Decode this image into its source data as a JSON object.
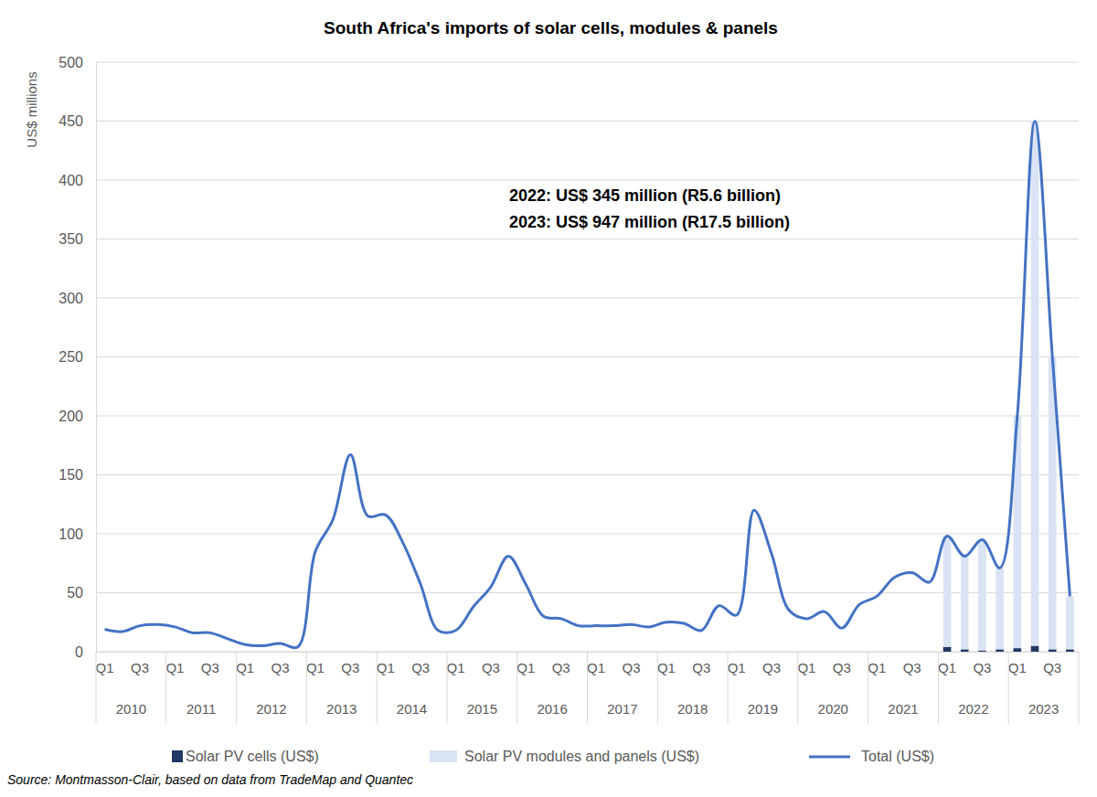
{
  "chart_data": {
    "type": "bar",
    "title": "South Africa's imports of solar cells, modules & panels",
    "y_label": "US$ millions",
    "annotations": [
      "2022: US$ 345 million (R5.6 billion)",
      "2023: US$ 947 million (R17.5 billion)"
    ],
    "source": "Source: Montmasson-Clair, based on data from TradeMap and Quantec",
    "groups": [
      "2010",
      "2011",
      "2012",
      "2013",
      "2014",
      "2015",
      "2016",
      "2017",
      "2018",
      "2019",
      "2020",
      "2021",
      "2022",
      "2023"
    ],
    "categories": [
      "Q1",
      null,
      "Q3",
      null,
      "Q1",
      null,
      "Q3",
      null,
      "Q1",
      null,
      "Q3",
      null,
      "Q1",
      null,
      "Q3",
      null,
      "Q1",
      null,
      "Q3",
      null,
      "Q1",
      null,
      "Q3",
      null,
      "Q1",
      null,
      "Q3",
      null,
      "Q1",
      null,
      "Q3",
      null,
      "Q1",
      null,
      "Q3",
      null,
      "Q1",
      null,
      "Q3",
      null,
      "Q1",
      null,
      "Q3",
      null,
      "Q1",
      null,
      "Q3",
      null,
      "Q1",
      null,
      "Q3",
      null,
      "Q1",
      null,
      "Q3",
      null
    ],
    "stacked": true,
    "grid": true,
    "legend": "bottom",
    "ylim": [
      0,
      500
    ],
    "yticks": [
      0,
      50,
      100,
      150,
      200,
      250,
      300,
      350,
      400,
      450,
      500
    ],
    "series": [
      {
        "name": "Solar PV cells (US$)",
        "type": "bar",
        "color": "#203864",
        "values": [
          null,
          null,
          null,
          null,
          null,
          null,
          null,
          null,
          null,
          null,
          null,
          null,
          null,
          null,
          null,
          null,
          null,
          null,
          null,
          null,
          null,
          null,
          null,
          null,
          null,
          null,
          null,
          null,
          null,
          null,
          null,
          null,
          null,
          null,
          null,
          null,
          null,
          null,
          null,
          null,
          null,
          null,
          null,
          null,
          null,
          null,
          null,
          null,
          4,
          2,
          1,
          2,
          3,
          5,
          2,
          2
        ]
      },
      {
        "name": "Solar PV modules and panels (US$)",
        "type": "bar",
        "color": "#dae3f3",
        "values": [
          null,
          null,
          null,
          null,
          null,
          null,
          null,
          null,
          null,
          null,
          null,
          null,
          null,
          null,
          null,
          null,
          null,
          null,
          null,
          null,
          null,
          null,
          null,
          null,
          null,
          null,
          null,
          null,
          null,
          null,
          null,
          null,
          null,
          null,
          null,
          null,
          null,
          null,
          null,
          null,
          null,
          null,
          null,
          null,
          null,
          null,
          null,
          null,
          94,
          79,
          94,
          69,
          197,
          445,
          248,
          45
        ]
      },
      {
        "name": "Total (US$)",
        "type": "line",
        "color": "#4472c4",
        "values": [
          19,
          17,
          22,
          23,
          21,
          16,
          16,
          11,
          6,
          5,
          7,
          4,
          85,
          112,
          167,
          115,
          116,
          92,
          57,
          18,
          18,
          38,
          55,
          81,
          57,
          30,
          28,
          22,
          22,
          22,
          23,
          21,
          25,
          24,
          18,
          39,
          31,
          120,
          83,
          35,
          28,
          34,
          20,
          40,
          47,
          63,
          67,
          59,
          98,
          81,
          95,
          71,
          200,
          450,
          250,
          47
        ]
      }
    ]
  }
}
